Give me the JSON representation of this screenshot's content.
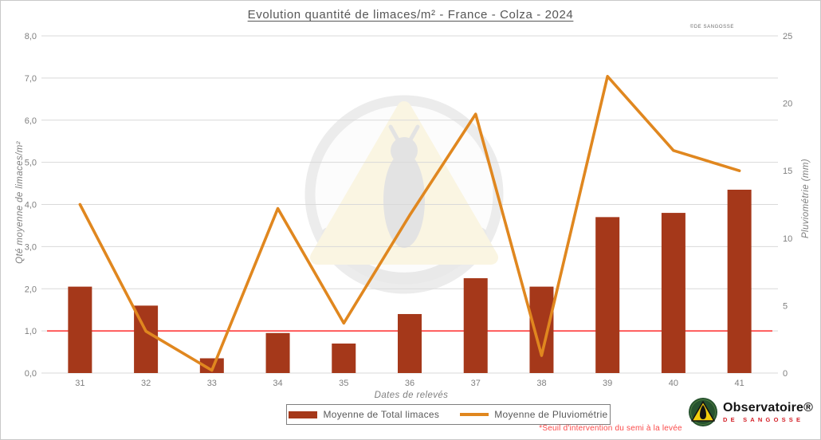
{
  "title": "Evolution quantité de limaces/m² - France - Colza - 2024",
  "copyright": "©DE SANGOSSE",
  "axes": {
    "x_title": "Dates de relevés",
    "y_left_title": "Qté moyenne de limaces/m²",
    "y_right_title": "Pluviométrie (mm)"
  },
  "legend": {
    "bar_label": "Moyenne de Total limaces",
    "line_label": "Moyenne de Pluviométrie"
  },
  "footnote": "*Seuil d'intervention du semi à la levée",
  "brand": {
    "name": "Observatoire®",
    "sub": "DE SANGOSSE"
  },
  "colors": {
    "bar": "#a5381a",
    "line": "#e0871f",
    "threshold": "#ff0000",
    "grid": "#d9d9d9",
    "tick_text": "#7f7f7f",
    "title_text": "#565656",
    "footnote_text": "#fb4a4a"
  },
  "chart_data": {
    "type": "bar",
    "subtype": "bar+line combo, dual y-axes",
    "title": "Evolution quantité de limaces/m² - France - Colza - 2024",
    "categories": [
      "31",
      "32",
      "33",
      "34",
      "35",
      "36",
      "37",
      "38",
      "39",
      "40",
      "41"
    ],
    "series": [
      {
        "name": "Moyenne de Total limaces",
        "type": "bar",
        "axis": "left",
        "color": "#a5381a",
        "values": [
          2.05,
          1.6,
          0.35,
          0.95,
          0.7,
          1.4,
          2.25,
          2.05,
          3.7,
          3.8,
          4.35
        ]
      },
      {
        "name": "Moyenne de Pluviométrie",
        "type": "line",
        "axis": "right",
        "color": "#e0871f",
        "values": [
          12.5,
          3.1,
          0.2,
          12.2,
          3.7,
          11.7,
          19.2,
          1.3,
          22.0,
          16.5,
          15.0
        ]
      }
    ],
    "threshold": {
      "value": 1.0,
      "axis": "left",
      "color": "#ff0000",
      "label": "*Seuil d'intervention du semi à la levée"
    },
    "xlabel": "Dates de relevés",
    "ylabel_left": "Qté moyenne de limaces/m²",
    "ylabel_right": "Pluviométrie (mm)",
    "ylim_left": [
      0,
      8
    ],
    "ylim_right": [
      0,
      25
    ],
    "yticks_left": [
      "0,0",
      "1,0",
      "2,0",
      "3,0",
      "4,0",
      "5,0",
      "6,0",
      "7,0",
      "8,0"
    ],
    "yticks_right": [
      0,
      5,
      10,
      15,
      20,
      25
    ],
    "grid": true,
    "legend_position": "bottom-center"
  }
}
